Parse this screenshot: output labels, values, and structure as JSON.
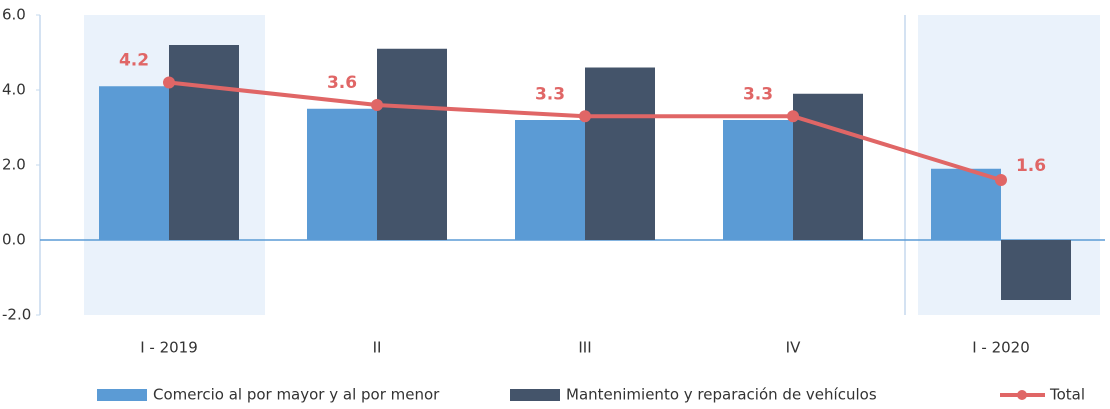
{
  "chart_data": {
    "type": "bar",
    "categories": [
      "I - 2019",
      "II",
      "III",
      "IV",
      "I - 2020"
    ],
    "series": [
      {
        "name": "Comercio al por mayor y al por menor",
        "color": "#5b9bd5",
        "values": [
          4.1,
          3.5,
          3.2,
          3.2,
          1.9
        ]
      },
      {
        "name": "Mantenimiento y reparación de vehículos",
        "color": "#44546a",
        "values": [
          5.2,
          5.1,
          4.6,
          3.9,
          -1.6
        ]
      },
      {
        "name": "Total",
        "type": "line",
        "color": "#e06666",
        "values": [
          4.2,
          3.6,
          3.3,
          3.3,
          1.6
        ]
      }
    ],
    "ylim": [
      -2,
      6
    ],
    "yticks": [
      {
        "value": -2,
        "label": "-2.0"
      },
      {
        "value": 0,
        "label": "0.0"
      },
      {
        "value": 2,
        "label": "2.0"
      },
      {
        "value": 4,
        "label": "4.0"
      },
      {
        "value": 6,
        "label": "6.0"
      }
    ],
    "legend": "bottom"
  }
}
